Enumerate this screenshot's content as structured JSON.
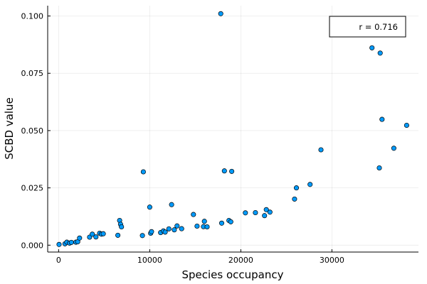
{
  "chart_data": {
    "type": "scatter",
    "xlabel": "Species occupancy",
    "ylabel": "SCBD value",
    "xlim": [
      -1200,
      39500
    ],
    "ylim": [
      -0.003,
      0.1045
    ],
    "xticks": [
      0,
      10000,
      20000,
      30000
    ],
    "xtick_labels": [
      "0",
      "10000",
      "20000",
      "30000"
    ],
    "yticks": [
      0.0,
      0.025,
      0.05,
      0.075,
      0.1
    ],
    "ytick_labels": [
      "0.000",
      "0.025",
      "0.050",
      "0.075",
      "0.100"
    ],
    "grid": true,
    "legend_placement": "top-right",
    "legend_text": "r = 0.716",
    "marker_color": "#009AFA",
    "marker_edge_color": "#000000",
    "series": [
      {
        "x": [
          50,
          700,
          900,
          1200,
          1400,
          1900,
          2100,
          2300,
          3400,
          3700,
          4100,
          4500,
          4700,
          4900,
          6500,
          6700,
          6800,
          6900,
          9200,
          9300,
          10000,
          10100,
          10200,
          11200,
          11500,
          11700,
          12100,
          12400,
          12700,
          13000,
          13500,
          14800,
          15200,
          15900,
          16000,
          16300,
          17800,
          17900,
          18200,
          18700,
          18900,
          19000,
          20500,
          21600,
          22600,
          22800,
          23200,
          25900,
          26100,
          27600,
          28800,
          34400,
          35200,
          35300,
          35500,
          36800,
          38200
        ],
        "y": [
          0.0003,
          0.0006,
          0.0013,
          0.0009,
          0.0012,
          0.0013,
          0.0015,
          0.0031,
          0.0035,
          0.0048,
          0.0036,
          0.0052,
          0.0048,
          0.005,
          0.0043,
          0.0108,
          0.0091,
          0.008,
          0.0042,
          0.032,
          0.0166,
          0.0052,
          0.0059,
          0.0055,
          0.0062,
          0.0057,
          0.0071,
          0.0177,
          0.0067,
          0.0084,
          0.0072,
          0.0134,
          0.0083,
          0.0081,
          0.0104,
          0.008,
          0.101,
          0.0096,
          0.0324,
          0.0108,
          0.0102,
          0.0322,
          0.0141,
          0.0142,
          0.0129,
          0.0155,
          0.0144,
          0.0201,
          0.025,
          0.0265,
          0.0416,
          0.0861,
          0.0337,
          0.0838,
          0.0549,
          0.0423,
          0.0523
        ]
      }
    ]
  }
}
